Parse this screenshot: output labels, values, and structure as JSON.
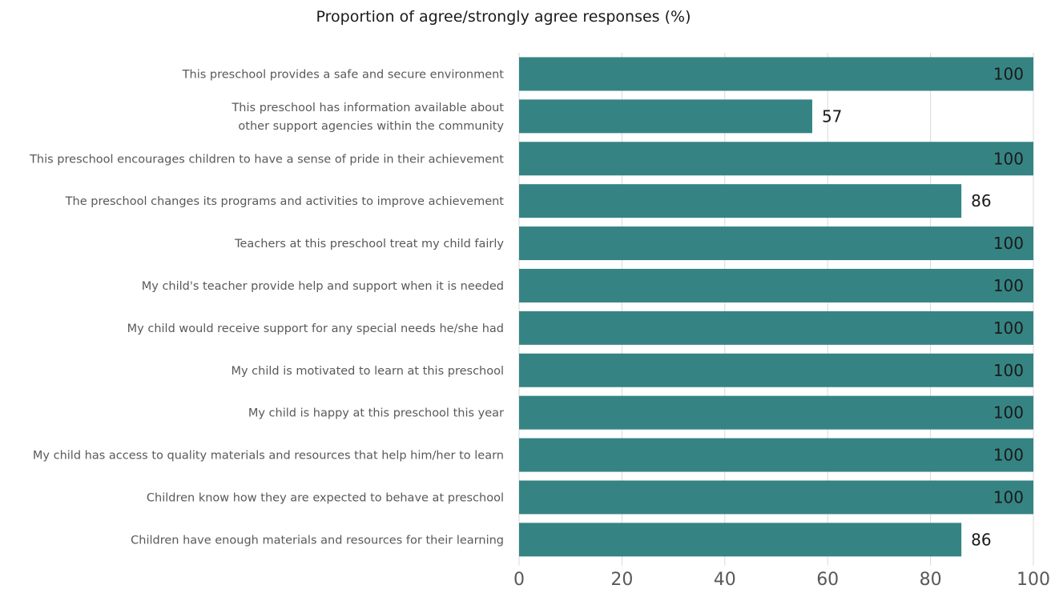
{
  "chart_data": {
    "type": "bar",
    "orientation": "horizontal",
    "title": "Proportion of agree/strongly agree responses (%)",
    "categories": [
      [
        "This preschool provides a safe and secure environment"
      ],
      [
        "This preschool has information available about",
        "other support agencies within the community"
      ],
      [
        "This preschool encourages children to have a sense of pride in their achievement"
      ],
      [
        "The preschool changes its programs and activities to improve achievement"
      ],
      [
        "Teachers at this preschool treat my child fairly"
      ],
      [
        "My child's teacher provide help and support when it is needed"
      ],
      [
        "My child would receive support for any special needs he/she had"
      ],
      [
        "My child is motivated to learn at this preschool"
      ],
      [
        "My child is happy at this preschool this year"
      ],
      [
        "My child has access to quality materials and resources that help him/her to learn"
      ],
      [
        "Children know how they are expected to behave at preschool"
      ],
      [
        "Children have enough materials and resources for their learning"
      ]
    ],
    "values": [
      100,
      57,
      100,
      86,
      100,
      100,
      100,
      100,
      100,
      100,
      100,
      86
    ],
    "xlim": [
      0,
      100
    ],
    "xticks": [
      0,
      20,
      40,
      60,
      80,
      100
    ],
    "grid": true,
    "bar_color": "#358483"
  }
}
